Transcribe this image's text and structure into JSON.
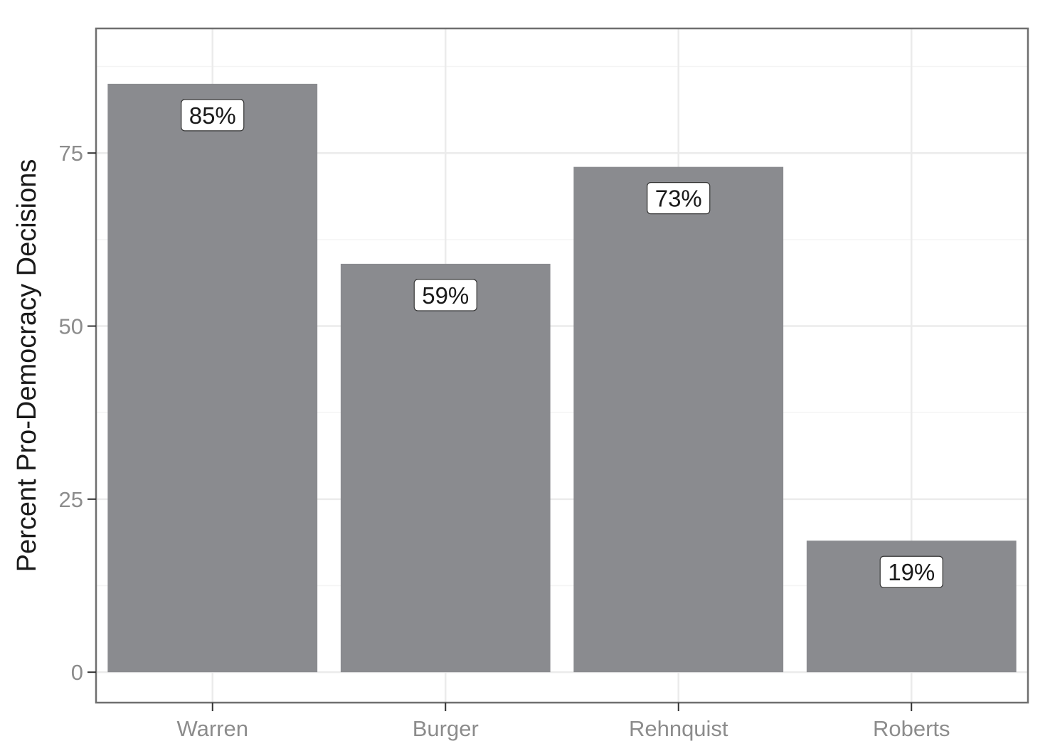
{
  "chart_data": {
    "type": "bar",
    "categories": [
      "Warren",
      "Burger",
      "Rehnquist",
      "Roberts"
    ],
    "values": [
      85,
      59,
      73,
      19
    ],
    "data_labels": [
      "85%",
      "59%",
      "73%",
      "19%"
    ],
    "title": "",
    "xlabel": "",
    "ylabel": "Percent Pro-Democracy Decisions",
    "yticks": [
      0,
      25,
      50,
      75
    ],
    "ytick_labels": [
      "0",
      "25",
      "50",
      "75"
    ],
    "ylim": [
      -4.4,
      93
    ],
    "grid": true,
    "legend": "none",
    "colors": {
      "bar": "#8a8b8f",
      "grid_major": "#ebebeb",
      "grid_minor": "#f4f4f4",
      "panel_border": "#6f6f6f",
      "label_box_border": "#333333"
    }
  }
}
